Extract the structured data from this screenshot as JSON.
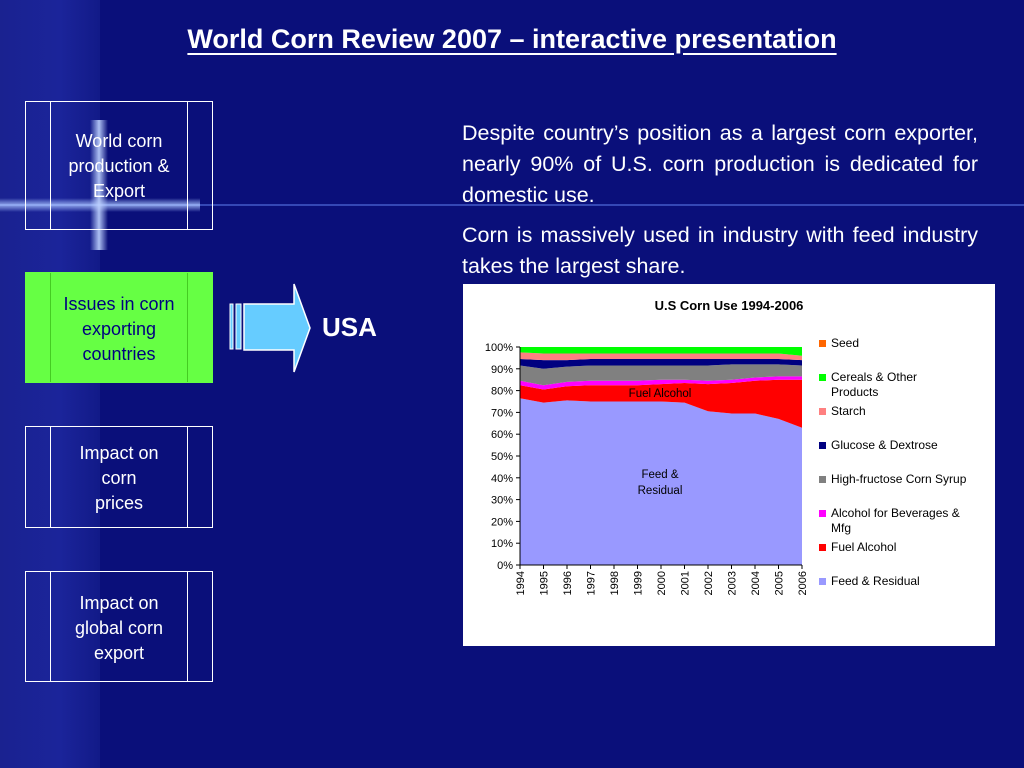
{
  "title": "World Corn Review 2007 – interactive presentation",
  "nav": [
    {
      "label": "World corn production & Export",
      "lines": [
        "World corn",
        "production &",
        "Export"
      ]
    },
    {
      "label": "Issues in corn exporting countries",
      "lines": [
        "Issues in corn",
        "exporting",
        "countries"
      ],
      "active": true
    },
    {
      "label": "Impact on corn prices",
      "lines": [
        "Impact on",
        "corn",
        "prices"
      ]
    },
    {
      "label": "Impact on global corn export",
      "lines": [
        "Impact on",
        "global corn",
        "export"
      ]
    }
  ],
  "section_label": "USA",
  "paragraphs": [
    "Despite country’s position as a largest corn exporter, nearly 90% of U.S. corn production is dedicated for domestic use.",
    "Corn is massively used in industry with feed industry takes the largest share."
  ],
  "colors": {
    "background": "#0a0f7a",
    "active_nav": "#66ff44",
    "arrow": "#66ccff"
  },
  "chart_data": {
    "type": "area",
    "stacked": true,
    "percent": true,
    "title": "U.S Corn Use 1994-2006",
    "x": [
      "1994",
      "1995",
      "1996",
      "1997",
      "1998",
      "1999",
      "2000",
      "2001",
      "2002",
      "2003",
      "2004",
      "2005",
      "2006"
    ],
    "yticks": [
      "0%",
      "10%",
      "20%",
      "30%",
      "40%",
      "50%",
      "60%",
      "70%",
      "80%",
      "90%",
      "100%"
    ],
    "ylim": [
      0,
      100
    ],
    "legend_position": "right",
    "annotations": [
      {
        "text": "Fuel Alcohol",
        "series": "Fuel Alcohol"
      },
      {
        "text": "Feed & Residual",
        "series": "Feed & Residual"
      }
    ],
    "series": [
      {
        "name": "Feed & Residual",
        "color": "#9999ff",
        "values": [
          76.5,
          74.5,
          75.5,
          75,
          75,
          75,
          75,
          74.5,
          70.5,
          69.5,
          69.5,
          67,
          63
        ]
      },
      {
        "name": "Fuel Alcohol",
        "color": "#ff0000",
        "values": [
          6,
          6,
          6.5,
          7.5,
          7.5,
          7.5,
          8,
          9,
          12.5,
          14,
          15,
          18,
          22
        ]
      },
      {
        "name": "Alcohol for Beverages & Mfg",
        "color": "#ff00ff",
        "values": [
          2,
          2,
          2,
          2,
          2,
          2,
          2,
          1.5,
          1.5,
          1.5,
          1.5,
          1.5,
          1.5
        ]
      },
      {
        "name": "High-fructose Corn Syrup",
        "color": "#808080",
        "values": [
          7,
          7.5,
          7,
          7,
          7,
          7,
          6.5,
          6.5,
          7,
          7,
          6,
          5.5,
          5
        ]
      },
      {
        "name": "Glucose & Dextrose",
        "color": "#000080",
        "values": [
          3,
          4,
          3,
          3,
          3,
          3,
          3,
          3,
          3,
          2.5,
          2.5,
          2.5,
          2.5
        ]
      },
      {
        "name": "Starch",
        "color": "#ff8080",
        "values": [
          3,
          3,
          3,
          2.5,
          2.5,
          2.5,
          2.5,
          2.5,
          2.5,
          2.5,
          2.5,
          2.5,
          2
        ]
      },
      {
        "name": "Cereals & Other Products",
        "color": "#00ff00",
        "values": [
          2.5,
          3,
          3,
          3,
          3,
          3,
          3,
          3,
          3,
          3,
          3,
          3,
          4
        ]
      },
      {
        "name": "Seed",
        "color": "#ff6600",
        "values": [
          0,
          0,
          0,
          0,
          0,
          0,
          0,
          0,
          0,
          0,
          0,
          0,
          0
        ]
      }
    ],
    "legend_order": [
      "Seed",
      "Cereals & Other Products",
      "Starch",
      "Glucose & Dextrose",
      "High-fructose Corn Syrup",
      "Alcohol for Beverages & Mfg",
      "Fuel Alcohol",
      "Feed & Residual"
    ]
  }
}
